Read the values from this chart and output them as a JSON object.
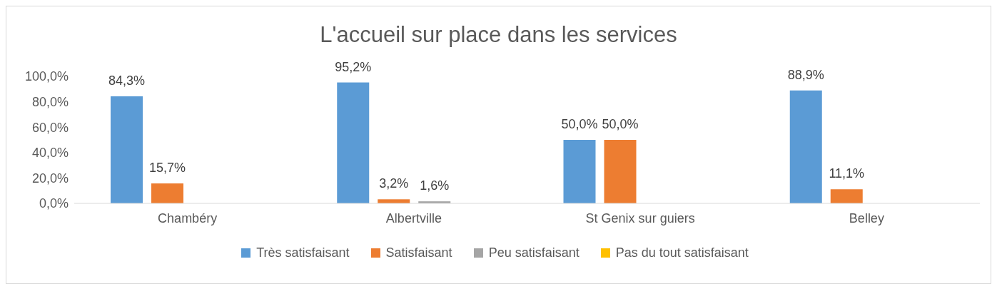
{
  "chart_data": {
    "type": "bar",
    "title": "L'accueil sur place dans les services",
    "categories": [
      "Chambéry",
      "Albertville",
      "St Genix sur guiers",
      "Belley"
    ],
    "series": [
      {
        "name": "Très satisfaisant",
        "color": "#5b9bd5",
        "values": [
          84.3,
          95.2,
          50.0,
          88.9
        ],
        "value_labels": [
          "84,3%",
          "95,2%",
          "50,0%",
          "88,9%"
        ]
      },
      {
        "name": "Satisfaisant",
        "color": "#ed7d31",
        "values": [
          15.7,
          3.2,
          50.0,
          11.1
        ],
        "value_labels": [
          "15,7%",
          "3,2%",
          "50,0%",
          "11,1%"
        ]
      },
      {
        "name": "Peu satisfaisant",
        "color": "#a5a5a5",
        "values": [
          0,
          1.6,
          0,
          0
        ],
        "value_labels": [
          null,
          "1,6%",
          null,
          null
        ]
      },
      {
        "name": "Pas du tout satisfaisant",
        "color": "#ffc000",
        "values": [
          0,
          0,
          0,
          0
        ],
        "value_labels": [
          null,
          null,
          null,
          null
        ]
      }
    ],
    "ylim": [
      0,
      100
    ],
    "yticks": [
      {
        "value": 0,
        "label": "0,0%"
      },
      {
        "value": 20,
        "label": "20,0%"
      },
      {
        "value": 40,
        "label": "40,0%"
      },
      {
        "value": 60,
        "label": "60,0%"
      },
      {
        "value": 80,
        "label": "80,0%"
      },
      {
        "value": 100,
        "label": "100,0%"
      }
    ],
    "grid": false,
    "legend": "bottom"
  }
}
